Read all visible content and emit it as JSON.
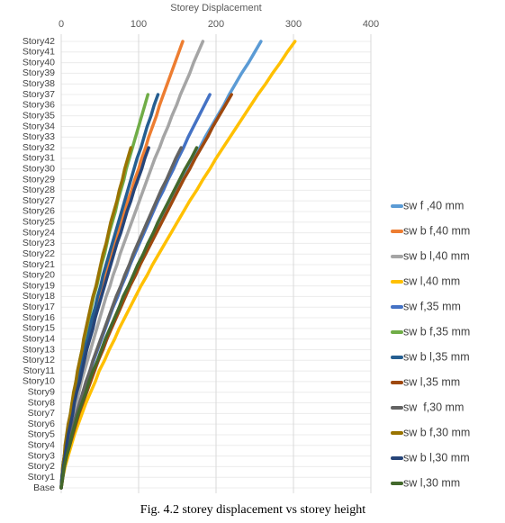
{
  "chart_data": {
    "type": "line",
    "orientation": "horizontal",
    "title": "Storey Displacement",
    "caption": "Fig. 4.2 storey displacement vs storey height",
    "categories": [
      "Base",
      "Story1",
      "Story2",
      "Story3",
      "Story4",
      "Story5",
      "Story6",
      "Story7",
      "Story8",
      "Story9",
      "Story10",
      "Story11",
      "Story12",
      "Story13",
      "Story14",
      "Story15",
      "Story16",
      "Story17",
      "Story18",
      "Story19",
      "Story20",
      "Story21",
      "Story22",
      "Story23",
      "Story24",
      "Story25",
      "Story26",
      "Story27",
      "Story28",
      "Story29",
      "Story30",
      "Story31",
      "Story32",
      "Story33",
      "Story34",
      "Story35",
      "Story36",
      "Story37",
      "Story38",
      "Story39",
      "Story40",
      "Story41",
      "Story42"
    ],
    "xlim": [
      0,
      400
    ],
    "xticks": [
      0,
      100,
      200,
      300,
      400
    ],
    "grid": true,
    "legend": "right",
    "series": [
      {
        "name": "sw f ,40 mm",
        "color": "#5b9bd5",
        "values": [
          0,
          2,
          4,
          7,
          11,
          15,
          19,
          23,
          28,
          32,
          37,
          42,
          48,
          53,
          59,
          64,
          70,
          76,
          82,
          88,
          95,
          101,
          108,
          114,
          121,
          128,
          135,
          142,
          149,
          156,
          164,
          171,
          179,
          186,
          194,
          202,
          210,
          217,
          225,
          233,
          242,
          250,
          258
        ]
      },
      {
        "name": "sw b f,40 mm",
        "color": "#ed7d31",
        "values": [
          0,
          1,
          3,
          4,
          7,
          9,
          11,
          14,
          17,
          20,
          23,
          26,
          29,
          32,
          36,
          39,
          43,
          46,
          50,
          54,
          58,
          62,
          66,
          70,
          74,
          78,
          82,
          86,
          91,
          95,
          100,
          104,
          109,
          113,
          118,
          123,
          127,
          132,
          137,
          142,
          147,
          152,
          157
        ]
      },
      {
        "name": "sw b l,40 mm",
        "color": "#a5a5a5",
        "values": [
          0,
          1,
          3,
          5,
          8,
          10,
          13,
          16,
          20,
          23,
          26,
          30,
          34,
          38,
          42,
          46,
          50,
          54,
          58,
          63,
          67,
          72,
          76,
          81,
          86,
          91,
          96,
          101,
          106,
          111,
          116,
          121,
          127,
          132,
          138,
          143,
          149,
          154,
          160,
          166,
          171,
          177,
          183
        ]
      },
      {
        "name": "sw l,40 mm",
        "color": "#ffc000",
        "values": [
          0,
          2,
          5,
          9,
          13,
          17,
          22,
          27,
          32,
          38,
          44,
          49,
          56,
          62,
          69,
          75,
          82,
          89,
          96,
          103,
          111,
          118,
          126,
          134,
          142,
          150,
          158,
          166,
          175,
          183,
          192,
          200,
          209,
          218,
          227,
          236,
          245,
          254,
          264,
          273,
          283,
          292,
          302
        ]
      },
      {
        "name": "sw f,35 mm",
        "color": "#4472c4",
        "values": [
          0,
          1,
          4,
          6,
          10,
          13,
          16,
          20,
          24,
          28,
          33,
          37,
          42,
          47,
          52,
          57,
          62,
          67,
          73,
          78,
          84,
          89,
          95,
          101,
          107,
          113,
          119,
          125,
          132,
          138,
          145,
          151,
          158,
          164,
          171,
          178,
          185,
          192,
          null,
          null,
          null,
          null,
          null
        ]
      },
      {
        "name": "sw b f,35 mm",
        "color": "#70ad47",
        "values": [
          0,
          1,
          2,
          4,
          6,
          8,
          10,
          12,
          14,
          17,
          19,
          22,
          24,
          27,
          30,
          33,
          36,
          39,
          42,
          46,
          49,
          52,
          56,
          59,
          62,
          66,
          70,
          73,
          77,
          81,
          84,
          88,
          92,
          96,
          100,
          104,
          108,
          112,
          null,
          null,
          null,
          null,
          null
        ]
      },
      {
        "name": "sw b l,35 mm",
        "color": "#255e91",
        "values": [
          0,
          1,
          2,
          4,
          6,
          8,
          11,
          13,
          16,
          19,
          21,
          24,
          27,
          30,
          34,
          37,
          40,
          44,
          47,
          51,
          54,
          58,
          62,
          66,
          70,
          74,
          78,
          82,
          86,
          90,
          94,
          98,
          103,
          107,
          111,
          116,
          120,
          125,
          null,
          null,
          null,
          null,
          null
        ]
      },
      {
        "name": "sw l,35 mm",
        "color": "#9e480e",
        "values": [
          0,
          2,
          4,
          7,
          11,
          15,
          19,
          23,
          28,
          33,
          38,
          43,
          48,
          54,
          59,
          65,
          71,
          77,
          83,
          89,
          96,
          102,
          109,
          116,
          123,
          130,
          137,
          144,
          151,
          158,
          166,
          173,
          181,
          189,
          196,
          204,
          212,
          220,
          null,
          null,
          null,
          null,
          null
        ]
      },
      {
        "name": "sw  f,30 mm",
        "color": "#636363",
        "values": [
          0,
          1,
          4,
          6,
          9,
          13,
          16,
          20,
          24,
          28,
          32,
          37,
          41,
          46,
          51,
          56,
          61,
          66,
          71,
          77,
          82,
          88,
          93,
          99,
          105,
          111,
          117,
          123,
          129,
          136,
          142,
          148,
          155,
          null,
          null,
          null,
          null,
          null,
          null,
          null,
          null,
          null,
          null
        ]
      },
      {
        "name": "sw b f,30 mm",
        "color": "#997300",
        "values": [
          0,
          1,
          2,
          4,
          5,
          7,
          9,
          12,
          14,
          16,
          19,
          21,
          24,
          27,
          29,
          32,
          35,
          38,
          41,
          45,
          48,
          51,
          54,
          58,
          61,
          64,
          68,
          72,
          75,
          79,
          82,
          86,
          90,
          null,
          null,
          null,
          null,
          null,
          null,
          null,
          null,
          null,
          null
        ]
      },
      {
        "name": "sw b l,30 mm",
        "color": "#264478",
        "values": [
          0,
          1,
          3,
          5,
          7,
          9,
          12,
          15,
          17,
          20,
          24,
          27,
          30,
          33,
          37,
          41,
          44,
          48,
          52,
          56,
          60,
          64,
          68,
          72,
          77,
          81,
          85,
          90,
          94,
          99,
          104,
          108,
          113,
          null,
          null,
          null,
          null,
          null,
          null,
          null,
          null,
          null,
          null
        ]
      },
      {
        "name": "sw l,30 mm",
        "color": "#43682b",
        "values": [
          0,
          2,
          4,
          7,
          11,
          14,
          18,
          22,
          27,
          32,
          36,
          41,
          47,
          52,
          57,
          63,
          69,
          75,
          80,
          87,
          93,
          99,
          106,
          112,
          119,
          125,
          132,
          139,
          146,
          153,
          160,
          168,
          175,
          null,
          null,
          null,
          null,
          null,
          null,
          null,
          null,
          null,
          null
        ]
      }
    ]
  }
}
